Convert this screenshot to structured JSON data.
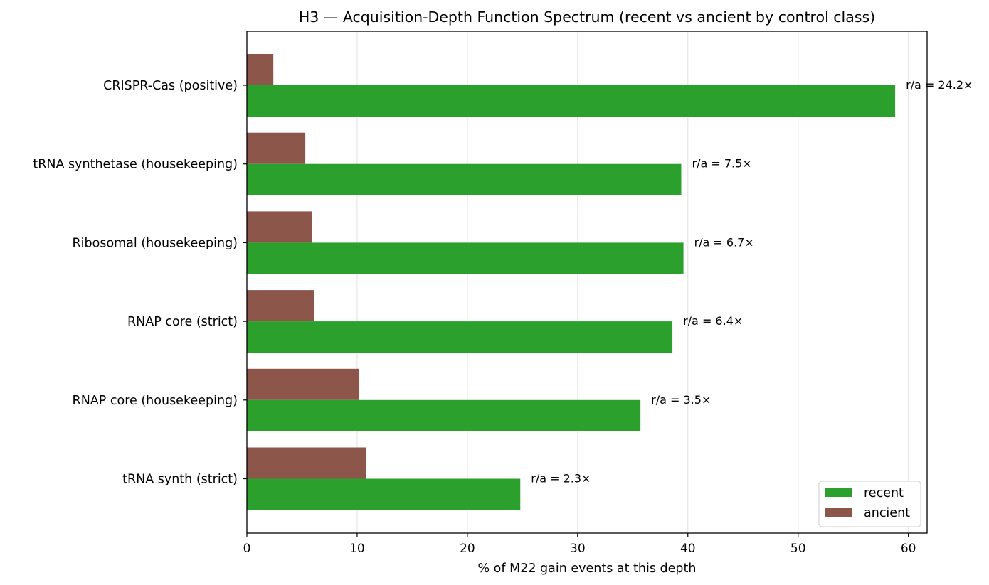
{
  "chart_data": {
    "type": "bar",
    "orientation": "horizontal",
    "title": "H3 — Acquisition-Depth Function Spectrum (recent vs ancient by control class)",
    "xlabel": "% of M22 gain events at this depth",
    "ylabel": "",
    "xlim": [
      0,
      61.7
    ],
    "xticks": [
      "0",
      "10",
      "20",
      "30",
      "40",
      "50",
      "60"
    ],
    "grid": "vertical",
    "legend_position": "lower-right",
    "categories": [
      "CRISPR-Cas (positive)",
      "tRNA synthetase (housekeeping)",
      "Ribosomal (housekeeping)",
      "RNAP core (strict)",
      "RNAP core (housekeeping)",
      "tRNA synth (strict)"
    ],
    "series": [
      {
        "name": "recent",
        "color": "#2ca02c",
        "values": [
          58.8,
          39.4,
          39.6,
          38.6,
          35.7,
          24.8
        ]
      },
      {
        "name": "ancient",
        "color": "#8c564b",
        "values": [
          2.4,
          5.3,
          5.9,
          6.1,
          10.2,
          10.8
        ]
      }
    ],
    "annotations": [
      "r/a = 24.2×",
      "r/a = 7.5×",
      "r/a = 6.7×",
      "r/a = 6.4×",
      "r/a = 3.5×",
      "r/a = 2.3×"
    ]
  }
}
